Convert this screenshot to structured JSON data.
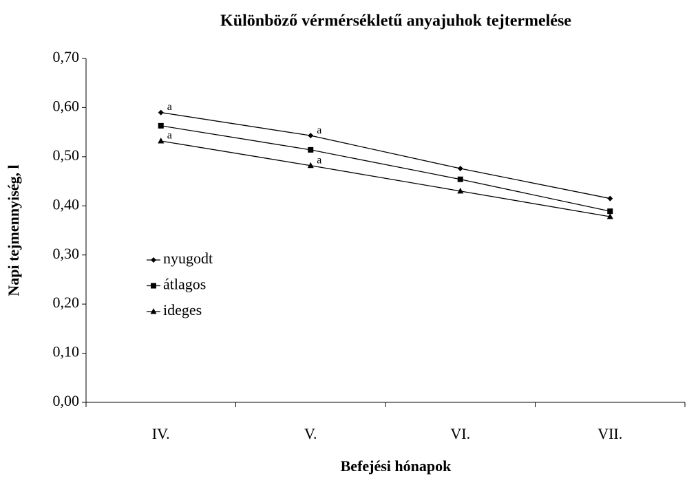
{
  "chart_data": {
    "type": "line",
    "title": "Különböző vérmérsékletű anyajuhok tejtermelése",
    "x_label": "Befejési hónapok",
    "y_label": "Napi tejmennyiség, l",
    "categories": [
      "IV.",
      "V.",
      "VI.",
      "VII."
    ],
    "series": [
      {
        "name": "nyugodt",
        "color": "#000000",
        "marker": "diamond",
        "values": [
          0.59,
          0.543,
          0.476,
          0.415
        ]
      },
      {
        "name": "átlagos",
        "color": "#000000",
        "marker": "square",
        "values": [
          0.563,
          0.514,
          0.454,
          0.389
        ]
      },
      {
        "name": "ideges",
        "color": "#000000",
        "marker": "triangle",
        "values": [
          0.532,
          0.482,
          0.43,
          0.378
        ]
      }
    ],
    "annotations": [
      {
        "text": "a",
        "series": 0,
        "index": 0
      },
      {
        "text": "a",
        "series": 0,
        "index": 1
      },
      {
        "text": "a",
        "series": 2,
        "index": 0
      },
      {
        "text": "a",
        "series": 2,
        "index": 1
      }
    ],
    "ylim": [
      0,
      0.7
    ],
    "yticks": [
      {
        "value": 0,
        "label": "0,00"
      },
      {
        "value": 0.1,
        "label": "0,10"
      },
      {
        "value": 0.2,
        "label": "0,20"
      },
      {
        "value": 0.3,
        "label": "0,30"
      },
      {
        "value": 0.4,
        "label": "0,40"
      },
      {
        "value": 0.5,
        "label": "0,50"
      },
      {
        "value": 0.6,
        "label": "0,60"
      },
      {
        "value": 0.7,
        "label": "0,70"
      }
    ],
    "grid": false,
    "legend_position": "left"
  }
}
